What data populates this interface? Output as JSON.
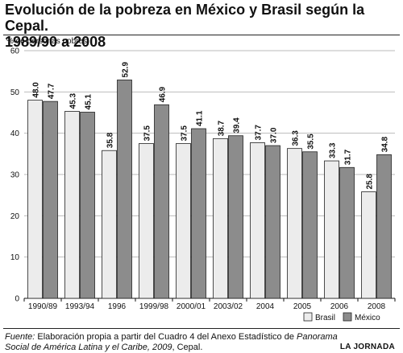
{
  "header": {
    "title_line1": "Evolución de la pobreza en México y Brasil según la Cepal.",
    "title_line2": "1989/90 a 2008"
  },
  "chart_data": {
    "type": "bar",
    "title": "Evolución de la pobreza en México y Brasil según la Cepal. 1989/90 a 2008",
    "ylabel": "% de personas pobres",
    "xlabel": "",
    "ylim": [
      0,
      60
    ],
    "yticks": [
      0,
      10,
      20,
      30,
      40,
      50,
      60
    ],
    "grid": true,
    "legend_position": "bottom-right",
    "categories": [
      "1990/89",
      "1993/94",
      "1996",
      "1999/98",
      "2000/01",
      "2003/02",
      "2004",
      "2005",
      "2006",
      "2008"
    ],
    "series": [
      {
        "name": "Brasil",
        "color": "#ececec",
        "values": [
          48.0,
          45.3,
          35.8,
          37.5,
          37.5,
          38.7,
          37.7,
          36.3,
          33.3,
          25.8
        ]
      },
      {
        "name": "México",
        "color": "#8c8c8c",
        "values": [
          47.7,
          45.1,
          52.9,
          46.9,
          41.1,
          39.4,
          37.0,
          35.5,
          31.7,
          34.8
        ]
      }
    ]
  },
  "footer": {
    "source_label": "Fuente:",
    "source_text_a": " Elaboración propia a partir del Cuadro 4 del Anexo Estadístico de ",
    "source_italic_a": "Panorama Social de América Latina y el Caribe, 2009",
    "source_text_b": ", Cepal.",
    "brand": "LA JORNADA"
  }
}
